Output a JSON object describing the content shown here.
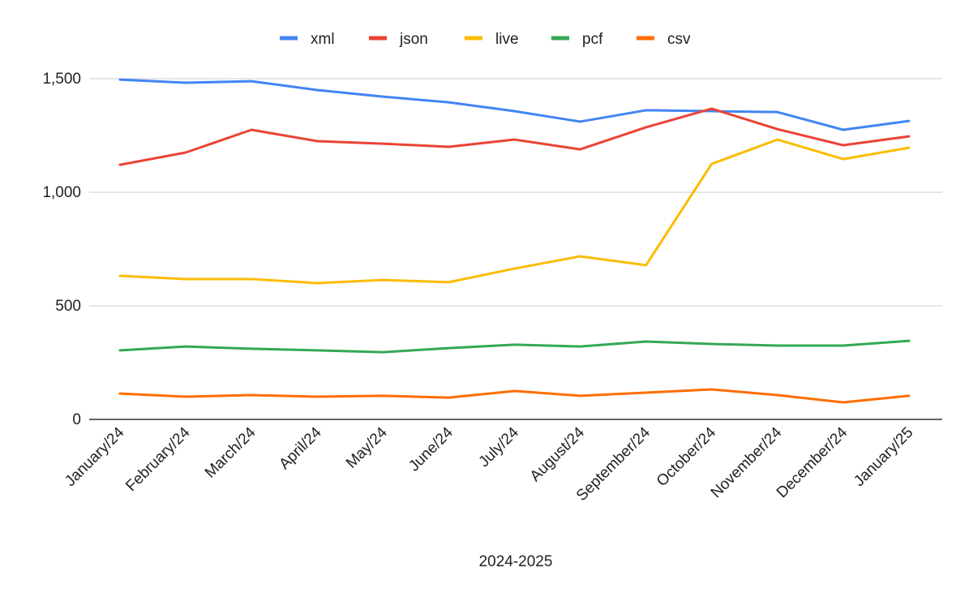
{
  "chart_data": {
    "type": "line",
    "title": "",
    "xlabel": "2024-2025",
    "ylabel": "",
    "ylim": [
      0,
      1500
    ],
    "yticks": [
      0,
      500,
      1000,
      1500
    ],
    "ytick_labels": [
      "0",
      "500",
      "1,000",
      "1,500"
    ],
    "grid": true,
    "legend_position": "top",
    "categories": [
      "January/24",
      "February/24",
      "March/24",
      "April/24",
      "May/24",
      "June/24",
      "July/24",
      "August/24",
      "September/24",
      "October/24",
      "November/24",
      "December/24",
      "January/25"
    ],
    "series": [
      {
        "name": "xml",
        "color": "#4285f4",
        "values": [
          1496,
          1482,
          1489,
          1450,
          1421,
          1396,
          1357,
          1311,
          1361,
          1357,
          1353,
          1275,
          1314
        ]
      },
      {
        "name": "json",
        "color": "#ea4335",
        "values": [
          1121,
          1175,
          1275,
          1225,
          1214,
          1200,
          1232,
          1189,
          1286,
          1368,
          1278,
          1207,
          1246
        ]
      },
      {
        "name": "live",
        "color": "#fbbc04",
        "values": [
          632,
          618,
          618,
          600,
          614,
          604,
          664,
          718,
          679,
          1125,
          1232,
          1146,
          1196
        ]
      },
      {
        "name": "pcf",
        "color": "#34a853",
        "values": [
          304,
          321,
          311,
          304,
          296,
          314,
          329,
          321,
          343,
          332,
          325,
          325,
          346
        ]
      },
      {
        "name": "csv",
        "color": "#ff6d01",
        "values": [
          114,
          100,
          107,
          100,
          104,
          96,
          125,
          104,
          118,
          132,
          107,
          75,
          104
        ]
      }
    ]
  }
}
